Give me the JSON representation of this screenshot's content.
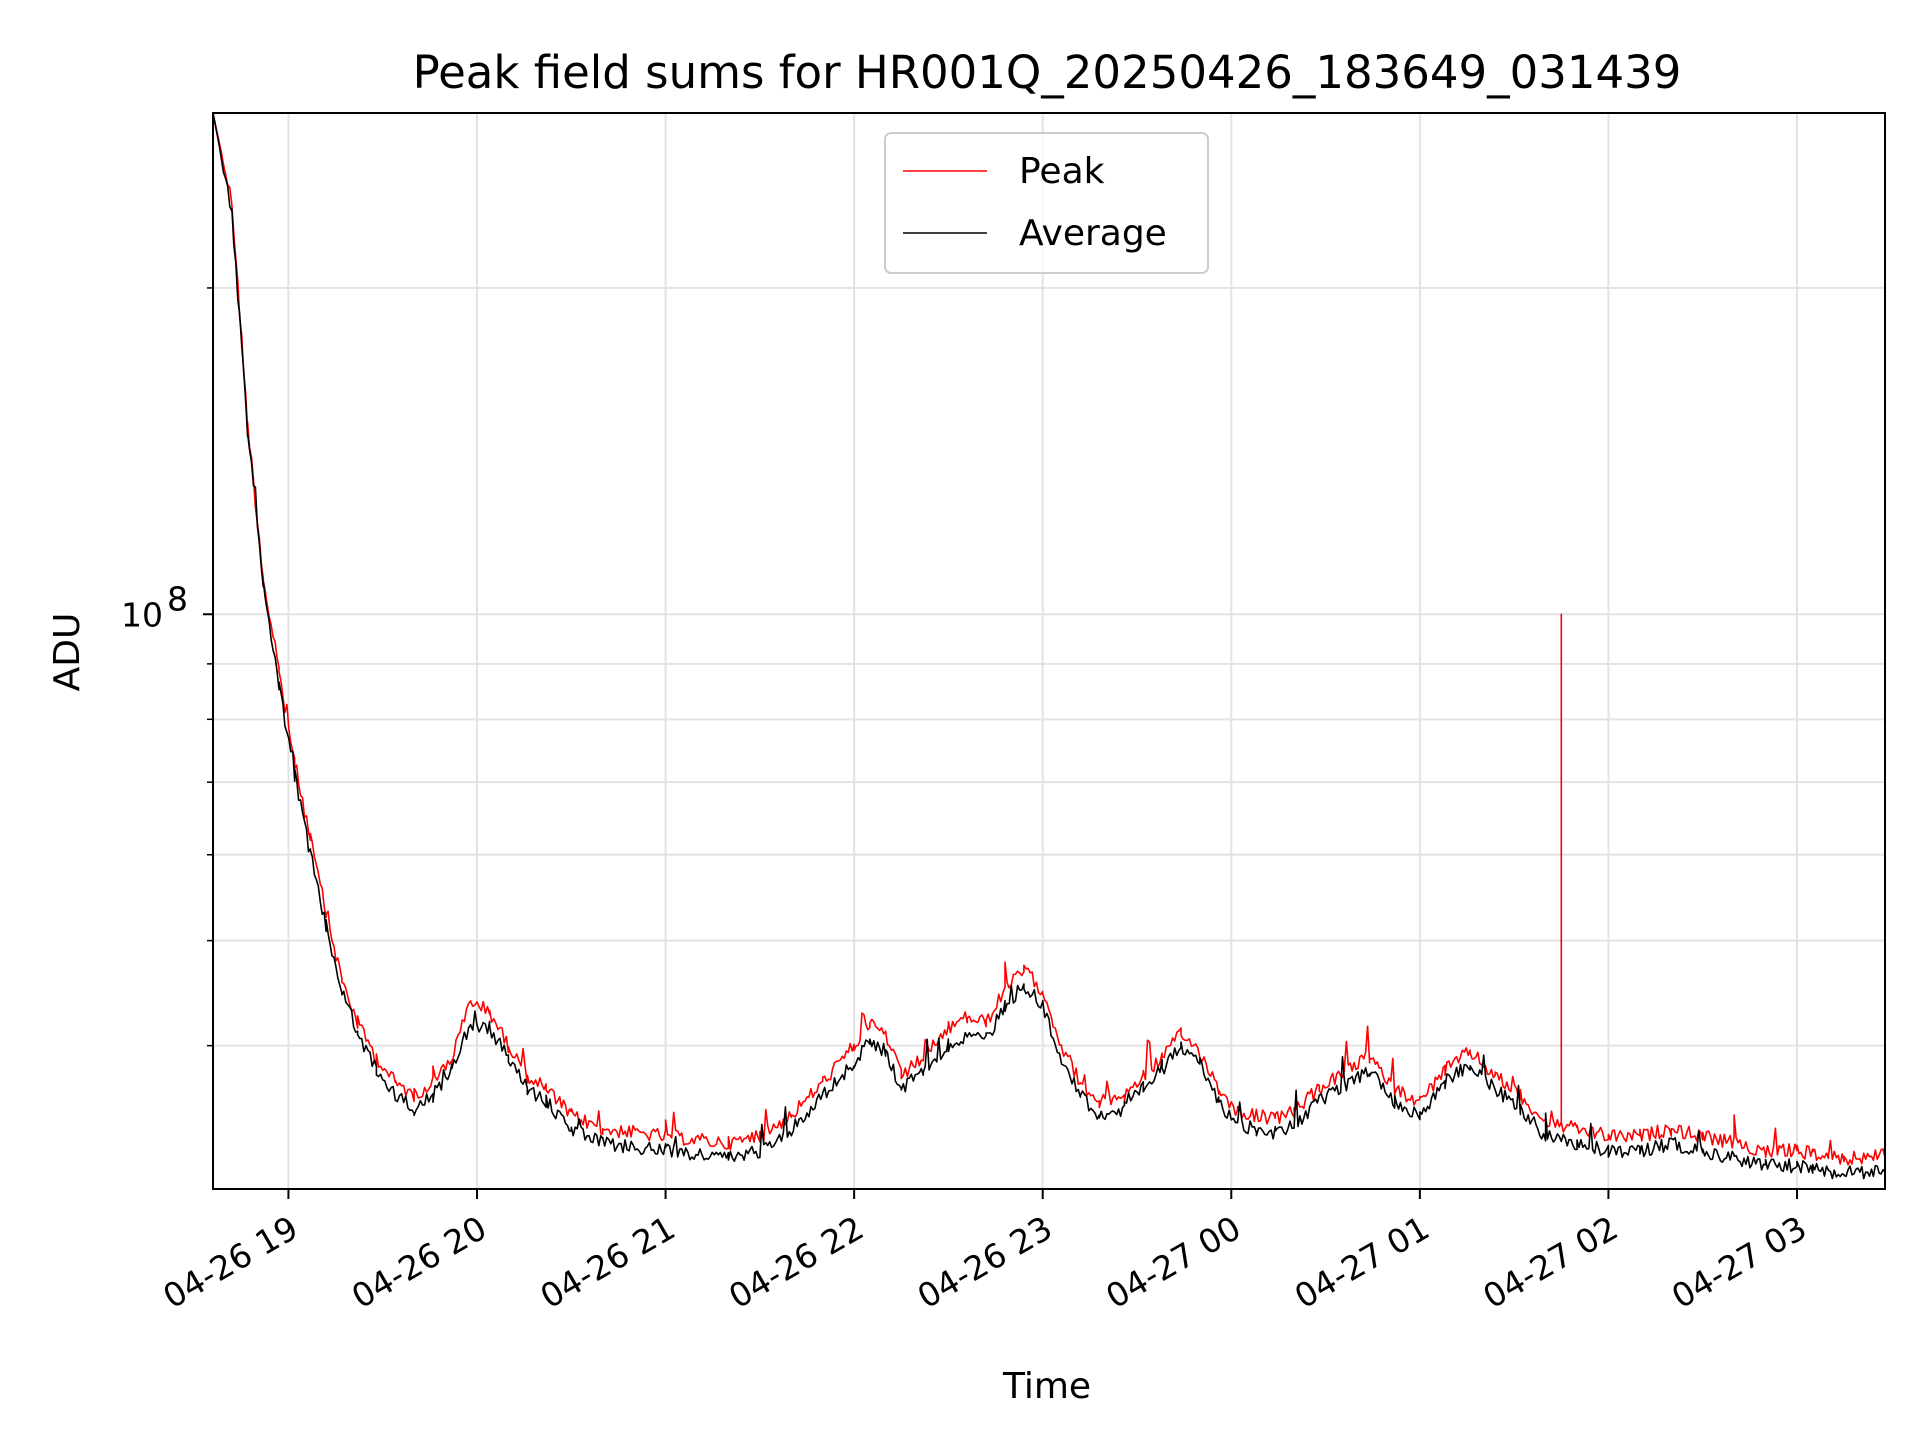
{
  "chart_data": {
    "type": "line",
    "title": "Peak field sums for HR001Q_20250426_183649_031439",
    "xlabel": "Time",
    "ylabel": "ADU",
    "x_axis": {
      "type": "time",
      "range": [
        "2025-04-26 18:36",
        "2025-04-27 03:28"
      ],
      "ticks": [
        {
          "value": "2025-04-26 19:00",
          "label": "04-26 19"
        },
        {
          "value": "2025-04-26 20:00",
          "label": "04-26 20"
        },
        {
          "value": "2025-04-26 21:00",
          "label": "04-26 21"
        },
        {
          "value": "2025-04-26 22:00",
          "label": "04-26 22"
        },
        {
          "value": "2025-04-26 23:00",
          "label": "04-26 23"
        },
        {
          "value": "2025-04-27 00:00",
          "label": "04-27 00"
        },
        {
          "value": "2025-04-27 01:00",
          "label": "04-27 01"
        },
        {
          "value": "2025-04-27 02:00",
          "label": "04-27 02"
        },
        {
          "value": "2025-04-27 03:00",
          "label": "04-27 03"
        }
      ],
      "tick_label_rotation": 30
    },
    "y_axis": {
      "scale": "log",
      "range": [
        29500000,
        290000000
      ],
      "major_ticks": [
        {
          "value": 100000000,
          "label_base": "10",
          "label_exp": "8"
        }
      ],
      "minor_ticks": [
        40000000,
        50000000,
        60000000,
        70000000,
        80000000,
        90000000,
        200000000
      ]
    },
    "grid": true,
    "legend": {
      "placement": "top-center"
    },
    "series": [
      {
        "name": "Peak",
        "color": "#ff0000",
        "points": [
          [
            "2025-04-26 18:36",
            290000000
          ],
          [
            "2025-04-26 18:42",
            240000000
          ],
          [
            "2025-04-26 18:47",
            150000000
          ],
          [
            "2025-04-26 18:52",
            108000000
          ],
          [
            "2025-04-26 18:57",
            88000000
          ],
          [
            "2025-04-26 19:02",
            73000000
          ],
          [
            "2025-04-26 19:07",
            62000000
          ],
          [
            "2025-04-26 19:12",
            53000000
          ],
          [
            "2025-04-26 19:17",
            46000000
          ],
          [
            "2025-04-26 19:22",
            42000000
          ],
          [
            "2025-04-26 19:28",
            39000000
          ],
          [
            "2025-04-26 19:34",
            37000000
          ],
          [
            "2025-04-26 19:40",
            36000000
          ],
          [
            "2025-04-26 19:46",
            37000000
          ],
          [
            "2025-04-26 19:52",
            39000000
          ],
          [
            "2025-04-26 19:58",
            44000000
          ],
          [
            "2025-04-26 20:04",
            43000000
          ],
          [
            "2025-04-26 20:10",
            40000000
          ],
          [
            "2025-04-26 20:16",
            37500000
          ],
          [
            "2025-04-26 20:22",
            36500000
          ],
          [
            "2025-04-26 20:30",
            34500000
          ],
          [
            "2025-04-26 20:40",
            33500000
          ],
          [
            "2025-04-26 21:00",
            33000000
          ],
          [
            "2025-04-26 21:20",
            32500000
          ],
          [
            "2025-04-26 21:30",
            33000000
          ],
          [
            "2025-04-26 21:40",
            34500000
          ],
          [
            "2025-04-26 21:50",
            37000000
          ],
          [
            "2025-04-26 22:00",
            40000000
          ],
          [
            "2025-04-26 22:05",
            42000000
          ],
          [
            "2025-04-26 22:10",
            41000000
          ],
          [
            "2025-04-26 22:15",
            37500000
          ],
          [
            "2025-04-26 22:22",
            39000000
          ],
          [
            "2025-04-26 22:30",
            41500000
          ],
          [
            "2025-04-26 22:36",
            42500000
          ],
          [
            "2025-04-26 22:42",
            42000000
          ],
          [
            "2025-04-26 22:48",
            45000000
          ],
          [
            "2025-04-26 22:54",
            47000000
          ],
          [
            "2025-04-26 23:00",
            45000000
          ],
          [
            "2025-04-26 23:06",
            40000000
          ],
          [
            "2025-04-26 23:12",
            37000000
          ],
          [
            "2025-04-26 23:18",
            35500000
          ],
          [
            "2025-04-26 23:26",
            36000000
          ],
          [
            "2025-04-26 23:32",
            37500000
          ],
          [
            "2025-04-26 23:38",
            39000000
          ],
          [
            "2025-04-26 23:44",
            41000000
          ],
          [
            "2025-04-26 23:50",
            39500000
          ],
          [
            "2025-04-26 23:56",
            36500000
          ],
          [
            "2025-04-27 00:02",
            34800000
          ],
          [
            "2025-04-27 00:08",
            34500000
          ],
          [
            "2025-04-27 00:14",
            34200000
          ],
          [
            "2025-04-27 00:20",
            34800000
          ],
          [
            "2025-04-27 00:28",
            36500000
          ],
          [
            "2025-04-27 00:36",
            37800000
          ],
          [
            "2025-04-27 00:44",
            39000000
          ],
          [
            "2025-04-27 00:52",
            36500000
          ],
          [
            "2025-04-27 01:00",
            35500000
          ],
          [
            "2025-04-27 01:08",
            38000000
          ],
          [
            "2025-04-27 01:16",
            39500000
          ],
          [
            "2025-04-27 01:24",
            37500000
          ],
          [
            "2025-04-27 01:32",
            36000000
          ],
          [
            "2025-04-27 01:40",
            34000000
          ],
          [
            "2025-04-27 01:50",
            33500000
          ],
          [
            "2025-04-27 02:00",
            33000000
          ],
          [
            "2025-04-27 02:10",
            33000000
          ],
          [
            "2025-04-27 02:20",
            33500000
          ],
          [
            "2025-04-27 02:30",
            33000000
          ],
          [
            "2025-04-27 02:40",
            32500000
          ],
          [
            "2025-04-27 02:50",
            32000000
          ],
          [
            "2025-04-27 03:00",
            32000000
          ],
          [
            "2025-04-27 03:05",
            31800000
          ],
          [
            "2025-04-27 03:10",
            31500000
          ],
          [
            "2025-04-27 03:15",
            31500000
          ],
          [
            "2025-04-27 03:20",
            31500000
          ],
          [
            "2025-04-27 03:28",
            31800000
          ]
        ],
        "spike": [
          "2025-04-27 01:45",
          100000000
        ]
      },
      {
        "name": "Average",
        "color": "#000000",
        "points": [
          [
            "2025-04-26 18:36",
            290000000
          ],
          [
            "2025-04-26 18:42",
            235000000
          ],
          [
            "2025-04-26 18:47",
            148000000
          ],
          [
            "2025-04-26 18:52",
            106000000
          ],
          [
            "2025-04-26 18:57",
            86000000
          ],
          [
            "2025-04-26 19:02",
            71000000
          ],
          [
            "2025-04-26 19:07",
            60000000
          ],
          [
            "2025-04-26 19:12",
            51500000
          ],
          [
            "2025-04-26 19:17",
            45000000
          ],
          [
            "2025-04-26 19:22",
            41000000
          ],
          [
            "2025-04-26 19:28",
            38000000
          ],
          [
            "2025-04-26 19:34",
            36000000
          ],
          [
            "2025-04-26 19:40",
            35000000
          ],
          [
            "2025-04-26 19:46",
            36000000
          ],
          [
            "2025-04-26 19:52",
            38000000
          ],
          [
            "2025-04-26 19:58",
            42000000
          ],
          [
            "2025-04-26 20:04",
            41500000
          ],
          [
            "2025-04-26 20:10",
            39000000
          ],
          [
            "2025-04-26 20:16",
            36500000
          ],
          [
            "2025-04-26 20:22",
            35500000
          ],
          [
            "2025-04-26 20:30",
            33500000
          ],
          [
            "2025-04-26 20:40",
            32500000
          ],
          [
            "2025-04-26 21:00",
            32000000
          ],
          [
            "2025-04-26 21:20",
            31500000
          ],
          [
            "2025-04-26 21:30",
            32000000
          ],
          [
            "2025-04-26 21:40",
            33500000
          ],
          [
            "2025-04-26 21:50",
            36000000
          ],
          [
            "2025-04-26 22:00",
            38500000
          ],
          [
            "2025-04-26 22:05",
            40500000
          ],
          [
            "2025-04-26 22:10",
            39500000
          ],
          [
            "2025-04-26 22:15",
            36500000
          ],
          [
            "2025-04-26 22:22",
            38000000
          ],
          [
            "2025-04-26 22:30",
            40000000
          ],
          [
            "2025-04-26 22:36",
            41000000
          ],
          [
            "2025-04-26 22:42",
            40500000
          ],
          [
            "2025-04-26 22:48",
            43500000
          ],
          [
            "2025-04-26 22:54",
            45500000
          ],
          [
            "2025-04-26 23:00",
            43500000
          ],
          [
            "2025-04-26 23:06",
            39000000
          ],
          [
            "2025-04-26 23:12",
            36000000
          ],
          [
            "2025-04-26 23:18",
            34500000
          ],
          [
            "2025-04-26 23:26",
            35000000
          ],
          [
            "2025-04-26 23:32",
            36500000
          ],
          [
            "2025-04-26 23:38",
            38000000
          ],
          [
            "2025-04-26 23:44",
            40000000
          ],
          [
            "2025-04-26 23:50",
            38500000
          ],
          [
            "2025-04-26 23:56",
            35500000
          ],
          [
            "2025-04-27 00:02",
            33800000
          ],
          [
            "2025-04-27 00:08",
            33500000
          ],
          [
            "2025-04-27 00:14",
            33200000
          ],
          [
            "2025-04-27 00:20",
            33800000
          ],
          [
            "2025-04-27 00:28",
            35500000
          ],
          [
            "2025-04-27 00:36",
            36800000
          ],
          [
            "2025-04-27 00:44",
            38000000
          ],
          [
            "2025-04-27 00:52",
            35500000
          ],
          [
            "2025-04-27 01:00",
            34500000
          ],
          [
            "2025-04-27 01:08",
            37000000
          ],
          [
            "2025-04-27 01:16",
            38500000
          ],
          [
            "2025-04-27 01:24",
            36500000
          ],
          [
            "2025-04-27 01:32",
            35000000
          ],
          [
            "2025-04-27 01:40",
            33000000
          ],
          [
            "2025-04-27 01:50",
            32500000
          ],
          [
            "2025-04-27 02:00",
            32000000
          ],
          [
            "2025-04-27 02:10",
            32000000
          ],
          [
            "2025-04-27 02:20",
            32500000
          ],
          [
            "2025-04-27 02:30",
            32000000
          ],
          [
            "2025-04-27 02:40",
            31500000
          ],
          [
            "2025-04-27 02:50",
            31000000
          ],
          [
            "2025-04-27 03:00",
            31000000
          ],
          [
            "2025-04-27 03:05",
            30800000
          ],
          [
            "2025-04-27 03:10",
            30500000
          ],
          [
            "2025-04-27 03:15",
            30500000
          ],
          [
            "2025-04-27 03:20",
            30500000
          ],
          [
            "2025-04-27 03:28",
            30800000
          ]
        ]
      }
    ]
  }
}
